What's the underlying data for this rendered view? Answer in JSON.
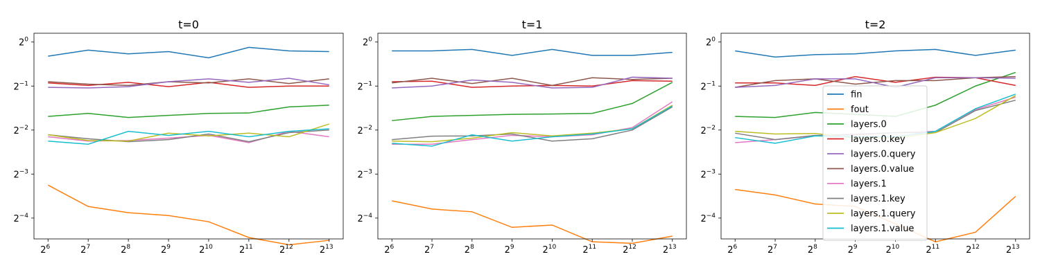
{
  "chart_data": [
    {
      "type": "line",
      "title": "t=0",
      "xscale": "log2",
      "yscale": "log2",
      "x_ticks": [
        {
          "base": "2",
          "exp": "6"
        },
        {
          "base": "2",
          "exp": "7"
        },
        {
          "base": "2",
          "exp": "8"
        },
        {
          "base": "2",
          "exp": "9"
        },
        {
          "base": "2",
          "exp": "10"
        },
        {
          "base": "2",
          "exp": "11"
        },
        {
          "base": "2",
          "exp": "12"
        },
        {
          "base": "2",
          "exp": "13"
        }
      ],
      "y_ticks": [
        {
          "base": "2",
          "exp": "0"
        },
        {
          "base": "2",
          "exp": "−1"
        },
        {
          "base": "2",
          "exp": "−2"
        },
        {
          "base": "2",
          "exp": "−3"
        },
        {
          "base": "2",
          "exp": "−4"
        }
      ],
      "x": [
        64,
        128,
        256,
        512,
        1024,
        2048,
        4096,
        8192
      ],
      "ylim": [
        0.045,
        1.0
      ],
      "series": [
        {
          "name": "fin",
          "values": [
            0.8,
            0.88,
            0.83,
            0.86,
            0.78,
            0.92,
            0.87,
            0.86
          ]
        },
        {
          "name": "fout",
          "values": [
            0.105,
            0.075,
            0.068,
            0.065,
            0.059,
            0.046,
            0.041,
            0.044
          ]
        },
        {
          "name": "layers.0",
          "values": [
            0.31,
            0.325,
            0.305,
            0.315,
            0.325,
            0.327,
            0.36,
            0.37
          ]
        },
        {
          "name": "layers.0.key",
          "values": [
            0.525,
            0.505,
            0.53,
            0.495,
            0.53,
            0.49,
            0.5,
            0.5
          ]
        },
        {
          "name": "layers.0.value",
          "values": [
            0.535,
            0.515,
            0.505,
            0.535,
            0.525,
            0.56,
            0.52,
            0.56
          ]
        },
        {
          "name": "layers.0.query",
          "values": [
            0.49,
            0.485,
            0.495,
            0.535,
            0.56,
            0.53,
            0.565,
            0.51
          ]
        },
        {
          "name": "layers.1",
          "values": [
            0.225,
            0.21,
            0.212,
            0.22,
            0.23,
            0.205,
            0.245,
            0.225
          ]
        },
        {
          "name": "layers.1.key",
          "values": [
            0.232,
            0.218,
            0.208,
            0.215,
            0.235,
            0.208,
            0.24,
            0.25
          ]
        },
        {
          "name": "layers.1.query",
          "values": [
            0.232,
            0.212,
            0.21,
            0.238,
            0.228,
            0.238,
            0.225,
            0.275
          ]
        },
        {
          "name": "layers.1.value",
          "values": [
            0.21,
            0.2,
            0.245,
            0.23,
            0.245,
            0.225,
            0.245,
            0.255
          ]
        }
      ]
    },
    {
      "type": "line",
      "title": "t=1",
      "xscale": "log2",
      "yscale": "log2",
      "x_ticks": [
        {
          "base": "2",
          "exp": "6"
        },
        {
          "base": "2",
          "exp": "7"
        },
        {
          "base": "2",
          "exp": "8"
        },
        {
          "base": "2",
          "exp": "9"
        },
        {
          "base": "2",
          "exp": "10"
        },
        {
          "base": "2",
          "exp": "11"
        },
        {
          "base": "2",
          "exp": "12"
        },
        {
          "base": "2",
          "exp": "13"
        }
      ],
      "y_ticks": [
        {
          "base": "2",
          "exp": "0"
        },
        {
          "base": "2",
          "exp": "−1"
        },
        {
          "base": "2",
          "exp": "−2"
        },
        {
          "base": "2",
          "exp": "−3"
        },
        {
          "base": "2",
          "exp": "−4"
        }
      ],
      "x": [
        64,
        128,
        256,
        512,
        1024,
        2048,
        4096,
        8192
      ],
      "ylim": [
        0.045,
        1.0
      ],
      "series": [
        {
          "name": "fin",
          "values": [
            0.87,
            0.87,
            0.89,
            0.81,
            0.89,
            0.81,
            0.81,
            0.85
          ]
        },
        {
          "name": "fout",
          "values": [
            0.082,
            0.072,
            0.069,
            0.054,
            0.056,
            0.043,
            0.042,
            0.047
          ]
        },
        {
          "name": "layers.0",
          "values": [
            0.29,
            0.31,
            0.315,
            0.32,
            0.322,
            0.325,
            0.38,
            0.53
          ]
        },
        {
          "name": "layers.0.key",
          "values": [
            0.535,
            0.54,
            0.49,
            0.5,
            0.505,
            0.5,
            0.545,
            0.54
          ]
        },
        {
          "name": "layers.0.value",
          "values": [
            0.525,
            0.565,
            0.52,
            0.565,
            0.505,
            0.57,
            0.555,
            0.565
          ]
        },
        {
          "name": "layers.0.query",
          "values": [
            0.485,
            0.5,
            0.55,
            0.53,
            0.485,
            0.49,
            0.575,
            0.565
          ]
        },
        {
          "name": "layers.1",
          "values": [
            0.2,
            0.2,
            0.215,
            0.23,
            0.225,
            0.232,
            0.26,
            0.39
          ]
        },
        {
          "name": "layers.1.key",
          "values": [
            0.215,
            0.227,
            0.228,
            0.235,
            0.21,
            0.218,
            0.25,
            0.36
          ]
        },
        {
          "name": "layers.1.query",
          "values": [
            0.21,
            0.208,
            0.22,
            0.24,
            0.228,
            0.238,
            0.255,
            0.37
          ]
        },
        {
          "name": "layers.1.value",
          "values": [
            0.203,
            0.194,
            0.232,
            0.21,
            0.225,
            0.235,
            0.255,
            0.365
          ]
        }
      ]
    },
    {
      "type": "line",
      "title": "t=2",
      "xscale": "log2",
      "yscale": "log2",
      "x_ticks": [
        {
          "base": "2",
          "exp": "6"
        },
        {
          "base": "2",
          "exp": "7"
        },
        {
          "base": "2",
          "exp": "8"
        },
        {
          "base": "2",
          "exp": "9"
        },
        {
          "base": "2",
          "exp": "10"
        },
        {
          "base": "2",
          "exp": "11"
        },
        {
          "base": "2",
          "exp": "12"
        },
        {
          "base": "2",
          "exp": "13"
        }
      ],
      "y_ticks": [
        {
          "base": "2",
          "exp": "0"
        },
        {
          "base": "2",
          "exp": "−1"
        },
        {
          "base": "2",
          "exp": "−2"
        },
        {
          "base": "2",
          "exp": "−3"
        },
        {
          "base": "2",
          "exp": "−4"
        }
      ],
      "x": [
        64,
        128,
        256,
        512,
        1024,
        2048,
        4096,
        8192
      ],
      "ylim": [
        0.045,
        1.0
      ],
      "legend_position": "center",
      "series": [
        {
          "name": "fin",
          "values": [
            0.87,
            0.79,
            0.82,
            0.83,
            0.87,
            0.89,
            0.81,
            0.88
          ]
        },
        {
          "name": "fout",
          "values": [
            0.098,
            0.09,
            0.078,
            0.075,
            0.057,
            0.043,
            0.05,
            0.088
          ]
        },
        {
          "name": "layers.0",
          "values": [
            0.31,
            0.305,
            0.33,
            0.32,
            0.31,
            0.37,
            0.5,
            0.62
          ]
        },
        {
          "name": "layers.0.key",
          "values": [
            0.525,
            0.525,
            0.505,
            0.58,
            0.53,
            0.575,
            0.57,
            0.505
          ]
        },
        {
          "name": "layers.0.value",
          "values": [
            0.49,
            0.545,
            0.56,
            0.515,
            0.545,
            0.545,
            0.57,
            0.58
          ]
        },
        {
          "name": "layers.0.query",
          "values": [
            0.49,
            0.505,
            0.56,
            0.56,
            0.49,
            0.57,
            0.57,
            0.565
          ]
        },
        {
          "name": "layers.1",
          "values": [
            0.205,
            0.215,
            0.228,
            0.235,
            0.24,
            0.245,
            0.345,
            0.42
          ]
        },
        {
          "name": "layers.1.key",
          "values": [
            0.238,
            0.215,
            0.23,
            0.232,
            0.24,
            0.24,
            0.34,
            0.4
          ]
        },
        {
          "name": "layers.1.query",
          "values": [
            0.245,
            0.235,
            0.237,
            0.22,
            0.22,
            0.24,
            0.3,
            0.43
          ]
        },
        {
          "name": "layers.1.value",
          "values": [
            0.222,
            0.203,
            0.228,
            0.225,
            0.225,
            0.245,
            0.35,
            0.44
          ]
        }
      ]
    }
  ],
  "colors": {
    "fin": "#1f77b4",
    "fout": "#ff7f0e",
    "layers.0": "#2ca02c",
    "layers.0.key": "#d62728",
    "layers.0.query": "#9467bd",
    "layers.0.value": "#8c564b",
    "layers.1": "#e377c2",
    "layers.1.key": "#7f7f7f",
    "layers.1.query": "#bcbd22",
    "layers.1.value": "#17becf"
  },
  "legend": [
    "fin",
    "fout",
    "layers.0",
    "layers.0.key",
    "layers.0.query",
    "layers.0.value",
    "layers.1",
    "layers.1.key",
    "layers.1.query",
    "layers.1.value"
  ]
}
